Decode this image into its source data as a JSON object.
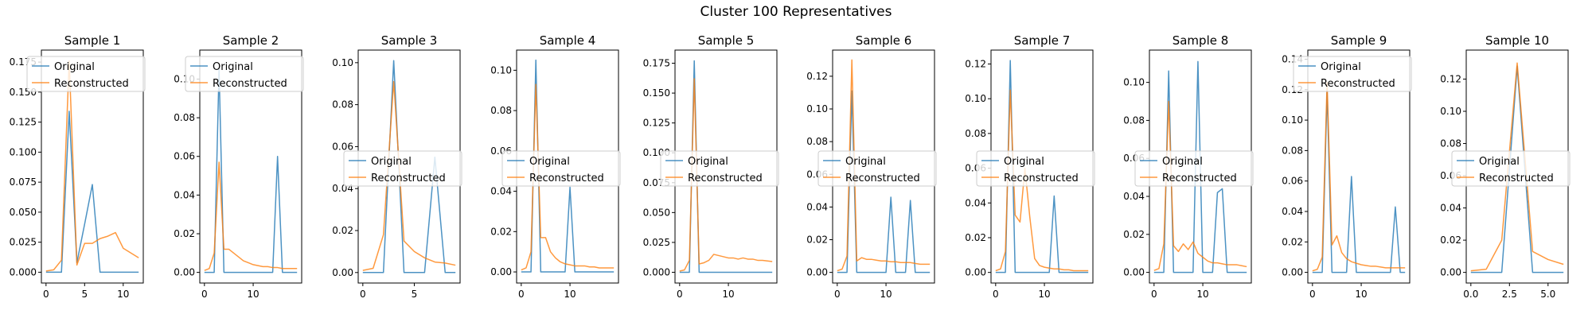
{
  "figure": {
    "title": "Cluster 100 Representatives"
  },
  "colors": {
    "original": "#1f77b4",
    "reconstructed": "#ff7f0e"
  },
  "chart_data": [
    {
      "type": "line",
      "title": "Sample 1",
      "legend": "upper-left",
      "x": [
        0,
        1,
        2,
        3,
        4,
        5,
        6,
        7,
        8,
        9,
        10,
        11,
        12
      ],
      "xlim": [
        -0.6,
        12.6
      ],
      "ylim": [
        -0.009,
        0.185
      ],
      "xticks": [
        0,
        5,
        10
      ],
      "yticks": [
        0.0,
        0.025,
        0.05,
        0.075,
        0.1,
        0.125,
        0.15,
        0.175
      ],
      "ytick_labels": [
        "0.000",
        "0.025",
        "0.050",
        "0.075",
        "0.100",
        "0.125",
        "0.150",
        "0.175"
      ],
      "series": [
        {
          "name": "Original",
          "values": [
            0,
            0,
            0,
            0.134,
            0.008,
            0.04,
            0.073,
            0,
            0,
            0,
            0,
            0,
            0
          ]
        },
        {
          "name": "Reconstructed",
          "values": [
            0.001,
            0.002,
            0.01,
            0.176,
            0.006,
            0.024,
            0.024,
            0.028,
            0.03,
            0.033,
            0.02,
            0.016,
            0.012
          ]
        }
      ]
    },
    {
      "type": "line",
      "title": "Sample 2",
      "legend": "upper-left",
      "x": [
        0,
        1,
        2,
        3,
        4,
        5,
        6,
        7,
        8,
        9,
        10,
        11,
        12,
        13,
        14,
        15,
        16,
        17,
        18,
        19
      ],
      "xlim": [
        -0.95,
        19.95
      ],
      "ylim": [
        -0.0055,
        0.115
      ],
      "xticks": [
        0,
        10
      ],
      "yticks": [
        0.0,
        0.02,
        0.04,
        0.06,
        0.08,
        0.1
      ],
      "ytick_labels": [
        "0.00",
        "0.02",
        "0.04",
        "0.06",
        "0.08",
        "0.10"
      ],
      "series": [
        {
          "name": "Original",
          "values": [
            0,
            0,
            0,
            0.105,
            0,
            0,
            0,
            0,
            0,
            0,
            0,
            0,
            0,
            0,
            0,
            0.06,
            0,
            0,
            0,
            0
          ]
        },
        {
          "name": "Reconstructed",
          "values": [
            0.001,
            0.002,
            0.01,
            0.057,
            0.012,
            0.012,
            0.01,
            0.008,
            0.006,
            0.005,
            0.004,
            0.0035,
            0.003,
            0.003,
            0.0025,
            0.0025,
            0.002,
            0.002,
            0.002,
            0.002
          ]
        }
      ]
    },
    {
      "type": "line",
      "title": "Sample 3",
      "legend": "center-left",
      "x": [
        0,
        1,
        2,
        3,
        4,
        5,
        6,
        7,
        8,
        9
      ],
      "xlim": [
        -0.45,
        9.45
      ],
      "ylim": [
        -0.005,
        0.106
      ],
      "xticks": [
        0,
        5
      ],
      "yticks": [
        0.0,
        0.02,
        0.04,
        0.06,
        0.08,
        0.1
      ],
      "ytick_labels": [
        "0.00",
        "0.02",
        "0.04",
        "0.06",
        "0.08",
        "0.10"
      ],
      "series": [
        {
          "name": "Original",
          "values": [
            0,
            0,
            0,
            0.101,
            0,
            0,
            0,
            0.055,
            0,
            0
          ]
        },
        {
          "name": "Reconstructed",
          "values": [
            0.001,
            0.002,
            0.018,
            0.091,
            0.015,
            0.01,
            0.007,
            0.005,
            0.0045,
            0.0035
          ]
        }
      ]
    },
    {
      "type": "line",
      "title": "Sample 4",
      "legend": "center-left",
      "x": [
        0,
        1,
        2,
        3,
        4,
        5,
        6,
        7,
        8,
        9,
        10,
        11,
        12,
        13,
        14,
        15,
        16,
        17,
        18,
        19
      ],
      "xlim": [
        -0.95,
        19.95
      ],
      "ylim": [
        -0.0055,
        0.11
      ],
      "xticks": [
        0,
        10
      ],
      "yticks": [
        0.0,
        0.02,
        0.04,
        0.06,
        0.08,
        0.1
      ],
      "ytick_labels": [
        "0.00",
        "0.02",
        "0.04",
        "0.06",
        "0.08",
        "0.10"
      ],
      "series": [
        {
          "name": "Original",
          "values": [
            0,
            0,
            0,
            0.105,
            0,
            0,
            0,
            0,
            0,
            0,
            0.042,
            0,
            0,
            0,
            0,
            0,
            0,
            0,
            0,
            0
          ]
        },
        {
          "name": "Reconstructed",
          "values": [
            0.001,
            0.002,
            0.01,
            0.093,
            0.017,
            0.017,
            0.01,
            0.007,
            0.005,
            0.004,
            0.0035,
            0.003,
            0.003,
            0.003,
            0.0025,
            0.0025,
            0.002,
            0.002,
            0.002,
            0.002
          ]
        }
      ]
    },
    {
      "type": "line",
      "title": "Sample 5",
      "legend": "center-left",
      "x": [
        0,
        1,
        2,
        3,
        4,
        5,
        6,
        7,
        8,
        9,
        10,
        11,
        12,
        13,
        14,
        15,
        16,
        17,
        18,
        19
      ],
      "xlim": [
        -0.95,
        19.95
      ],
      "ylim": [
        -0.009,
        0.186
      ],
      "xticks": [
        0,
        10
      ],
      "yticks": [
        0.0,
        0.025,
        0.05,
        0.075,
        0.1,
        0.125,
        0.15,
        0.175
      ],
      "ytick_labels": [
        "0.000",
        "0.025",
        "0.050",
        "0.075",
        "0.100",
        "0.125",
        "0.150",
        "0.175"
      ],
      "series": [
        {
          "name": "Original",
          "values": [
            0,
            0,
            0,
            0.177,
            0,
            0,
            0,
            0,
            0,
            0,
            0,
            0,
            0,
            0,
            0,
            0,
            0,
            0,
            0,
            0
          ]
        },
        {
          "name": "Reconstructed",
          "values": [
            0.001,
            0.002,
            0.01,
            0.162,
            0.007,
            0.008,
            0.01,
            0.015,
            0.014,
            0.013,
            0.012,
            0.012,
            0.011,
            0.012,
            0.011,
            0.011,
            0.01,
            0.01,
            0.0095,
            0.009
          ]
        }
      ]
    },
    {
      "type": "line",
      "title": "Sample 6",
      "legend": "center-left",
      "x": [
        0,
        1,
        2,
        3,
        4,
        5,
        6,
        7,
        8,
        9,
        10,
        11,
        12,
        13,
        14,
        15,
        16,
        17,
        18,
        19
      ],
      "xlim": [
        -0.95,
        19.95
      ],
      "ylim": [
        -0.0065,
        0.136
      ],
      "xticks": [
        0,
        10
      ],
      "yticks": [
        0.0,
        0.02,
        0.04,
        0.06,
        0.08,
        0.1,
        0.12
      ],
      "ytick_labels": [
        "0.00",
        "0.02",
        "0.04",
        "0.06",
        "0.08",
        "0.10",
        "0.12"
      ],
      "series": [
        {
          "name": "Original",
          "values": [
            0,
            0,
            0,
            0.111,
            0,
            0,
            0,
            0,
            0,
            0,
            0,
            0.046,
            0,
            0,
            0,
            0.044,
            0,
            0,
            0,
            0
          ]
        },
        {
          "name": "Reconstructed",
          "values": [
            0.001,
            0.002,
            0.01,
            0.13,
            0.007,
            0.009,
            0.008,
            0.008,
            0.0075,
            0.007,
            0.007,
            0.0065,
            0.0065,
            0.006,
            0.006,
            0.006,
            0.0055,
            0.005,
            0.005,
            0.005
          ]
        }
      ]
    },
    {
      "type": "line",
      "title": "Sample 7",
      "legend": "center-left",
      "x": [
        0,
        1,
        2,
        3,
        4,
        5,
        6,
        7,
        8,
        9,
        10,
        11,
        12,
        13,
        14,
        15,
        16,
        17,
        18,
        19
      ],
      "xlim": [
        -0.95,
        19.95
      ],
      "ylim": [
        -0.0061,
        0.128
      ],
      "xticks": [
        0,
        10
      ],
      "yticks": [
        0.0,
        0.02,
        0.04,
        0.06,
        0.08,
        0.1,
        0.12
      ],
      "ytick_labels": [
        "0.00",
        "0.02",
        "0.04",
        "0.06",
        "0.08",
        "0.10",
        "0.12"
      ],
      "series": [
        {
          "name": "Original",
          "values": [
            0,
            0,
            0,
            0.122,
            0,
            0,
            0,
            0,
            0,
            0,
            0,
            0,
            0.044,
            0,
            0,
            0,
            0,
            0,
            0,
            0
          ]
        },
        {
          "name": "Reconstructed",
          "values": [
            0.001,
            0.002,
            0.012,
            0.105,
            0.033,
            0.029,
            0.06,
            0.032,
            0.008,
            0.004,
            0.003,
            0.0025,
            0.002,
            0.002,
            0.0015,
            0.0015,
            0.001,
            0.001,
            0.001,
            0.001
          ]
        }
      ]
    },
    {
      "type": "line",
      "title": "Sample 8",
      "legend": "center-left",
      "x": [
        0,
        1,
        2,
        3,
        4,
        5,
        6,
        7,
        8,
        9,
        10,
        11,
        12,
        13,
        14,
        15,
        16,
        17,
        18,
        19
      ],
      "xlim": [
        -0.95,
        19.95
      ],
      "ylim": [
        -0.0056,
        0.117
      ],
      "xticks": [
        0,
        10
      ],
      "yticks": [
        0.0,
        0.02,
        0.04,
        0.06,
        0.08,
        0.1
      ],
      "ytick_labels": [
        "0.00",
        "0.02",
        "0.04",
        "0.06",
        "0.08",
        "0.10"
      ],
      "series": [
        {
          "name": "Original",
          "values": [
            0,
            0,
            0,
            0.106,
            0,
            0,
            0,
            0,
            0,
            0.111,
            0,
            0,
            0,
            0.042,
            0.044,
            0,
            0,
            0,
            0,
            0
          ]
        },
        {
          "name": "Reconstructed",
          "values": [
            0.001,
            0.002,
            0.015,
            0.09,
            0.014,
            0.011,
            0.015,
            0.012,
            0.016,
            0.01,
            0.008,
            0.006,
            0.005,
            0.005,
            0.0045,
            0.004,
            0.004,
            0.004,
            0.0035,
            0.003
          ]
        }
      ]
    },
    {
      "type": "line",
      "title": "Sample 9",
      "legend": "upper-left",
      "x": [
        0,
        1,
        2,
        3,
        4,
        5,
        6,
        7,
        8,
        9,
        10,
        11,
        12,
        13,
        14,
        15,
        16,
        17,
        18,
        19
      ],
      "xlim": [
        -0.95,
        19.95
      ],
      "ylim": [
        -0.007,
        0.146
      ],
      "xticks": [
        0,
        10
      ],
      "yticks": [
        0.0,
        0.02,
        0.04,
        0.06,
        0.08,
        0.1,
        0.12,
        0.14
      ],
      "ytick_labels": [
        "0.00",
        "0.02",
        "0.04",
        "0.06",
        "0.08",
        "0.10",
        "0.12",
        "0.14"
      ],
      "series": [
        {
          "name": "Original",
          "values": [
            0,
            0,
            0,
            0.119,
            0,
            0,
            0,
            0,
            0.063,
            0,
            0,
            0,
            0,
            0,
            0,
            0,
            0,
            0.043,
            0,
            0
          ]
        },
        {
          "name": "Reconstructed",
          "values": [
            0.001,
            0.002,
            0.01,
            0.125,
            0.018,
            0.024,
            0.013,
            0.009,
            0.007,
            0.006,
            0.005,
            0.0045,
            0.004,
            0.004,
            0.0035,
            0.003,
            0.003,
            0.003,
            0.003,
            0.003
          ]
        }
      ]
    },
    {
      "type": "line",
      "title": "Sample 10",
      "legend": "center-left",
      "x": [
        0,
        1,
        2,
        3,
        4,
        5,
        6
      ],
      "xlim": [
        -0.3,
        6.3
      ],
      "ylim": [
        -0.0066,
        0.138
      ],
      "xticks": [
        0,
        2.5,
        5
      ],
      "yticks": [
        0.0,
        0.02,
        0.04,
        0.06,
        0.08,
        0.1,
        0.12
      ],
      "xtick_labels": [
        "0.0",
        "2.5",
        "5.0"
      ],
      "ytick_labels": [
        "0.00",
        "0.02",
        "0.04",
        "0.06",
        "0.08",
        "0.10",
        "0.12"
      ],
      "series": [
        {
          "name": "Original",
          "values": [
            0,
            0,
            0,
            0.128,
            0,
            0,
            0
          ]
        },
        {
          "name": "Reconstructed",
          "values": [
            0.001,
            0.002,
            0.02,
            0.13,
            0.013,
            0.008,
            0.005
          ]
        }
      ]
    }
  ]
}
